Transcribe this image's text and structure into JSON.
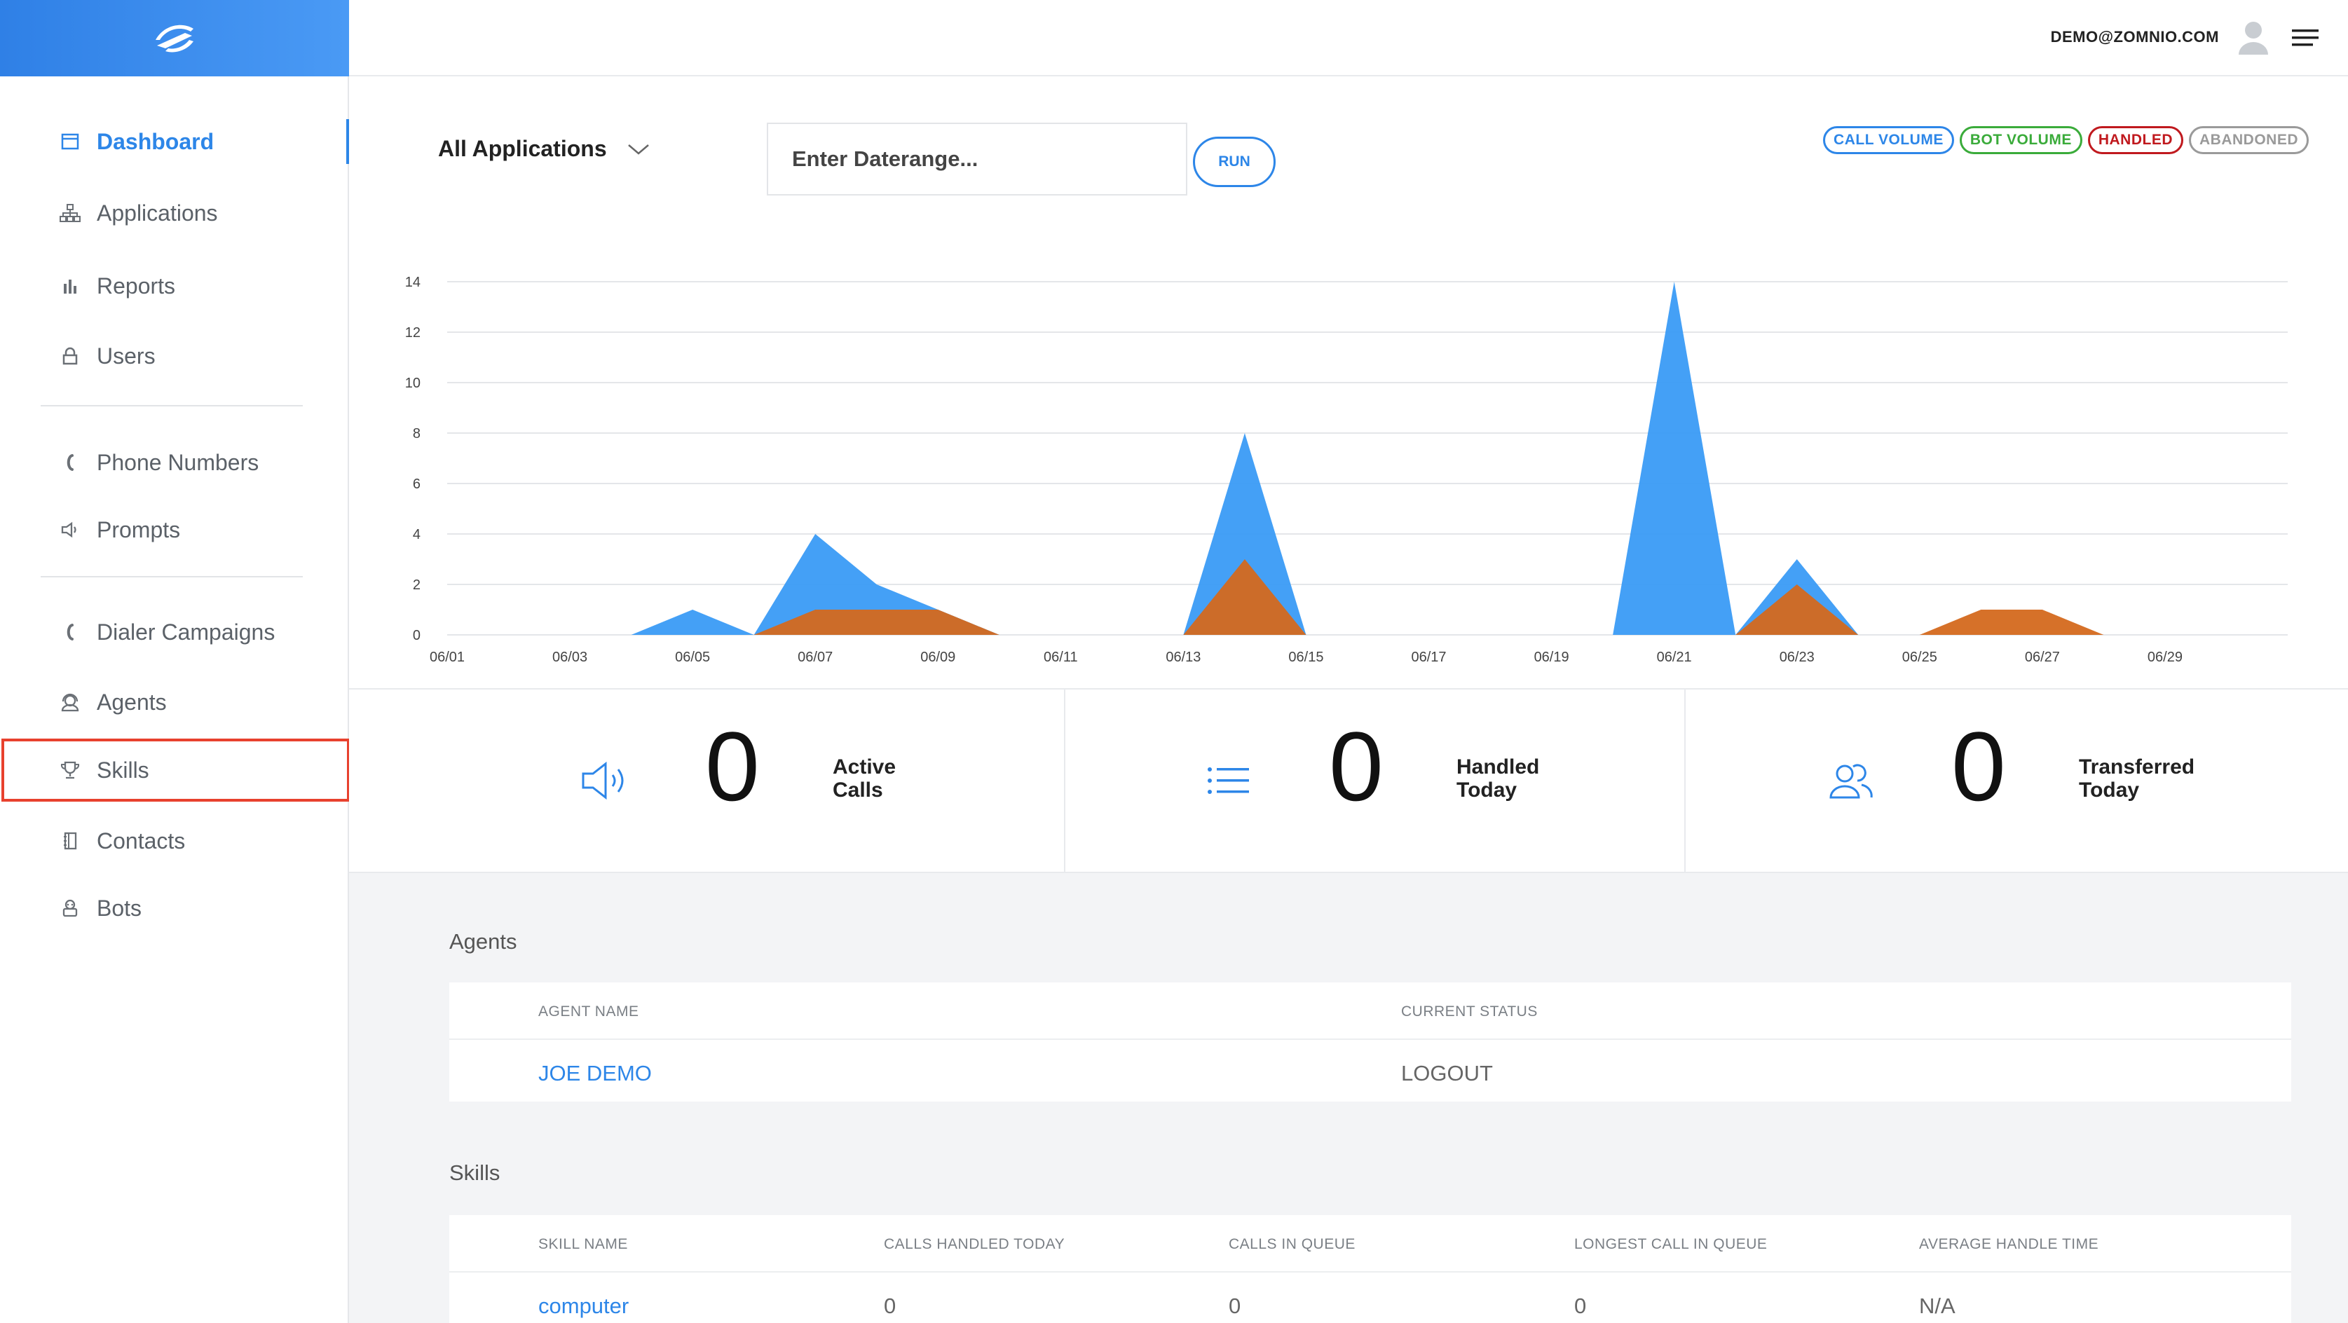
{
  "sidebar": {
    "items": [
      {
        "label": "Dashboard",
        "icon": "calendar-icon"
      },
      {
        "label": "Applications",
        "icon": "sitemap-icon"
      },
      {
        "label": "Reports",
        "icon": "bar-chart-icon"
      },
      {
        "label": "Users",
        "icon": "lock-icon"
      },
      {
        "label": "Phone Numbers",
        "icon": "phone-icon"
      },
      {
        "label": "Prompts",
        "icon": "speaker-icon"
      },
      {
        "label": "Dialer Campaigns",
        "icon": "phone-icon"
      },
      {
        "label": "Agents",
        "icon": "agent-icon"
      },
      {
        "label": "Skills",
        "icon": "trophy-icon"
      },
      {
        "label": "Contacts",
        "icon": "contacts-book-icon"
      },
      {
        "label": "Bots",
        "icon": "bot-icon"
      }
    ],
    "active": "Dashboard",
    "highlighted": "Skills"
  },
  "header": {
    "user_email": "DEMO@ZOMNIO.COM"
  },
  "filters": {
    "application_select": "All Applications",
    "daterange_placeholder": "Enter Daterange...",
    "run_label": "RUN"
  },
  "legend": [
    {
      "label": "CALL VOLUME",
      "color": "#2d86e8"
    },
    {
      "label": "BOT VOLUME",
      "color": "#3aab3a"
    },
    {
      "label": "HANDLED",
      "color": "#c0191e"
    },
    {
      "label": "ABANDONED",
      "color": "#9a9a9a"
    }
  ],
  "chart_data": {
    "type": "area",
    "x": [
      "06/01",
      "06/02",
      "06/03",
      "06/04",
      "06/05",
      "06/06",
      "06/07",
      "06/08",
      "06/09",
      "06/10",
      "06/11",
      "06/12",
      "06/13",
      "06/14",
      "06/15",
      "06/16",
      "06/17",
      "06/18",
      "06/19",
      "06/20",
      "06/21",
      "06/22",
      "06/23",
      "06/24",
      "06/25",
      "06/26",
      "06/27",
      "06/28",
      "06/29",
      "06/30",
      "07/01"
    ],
    "x_tick_labels": [
      "06/01",
      "06/03",
      "06/05",
      "06/07",
      "06/09",
      "06/11",
      "06/13",
      "06/15",
      "06/17",
      "06/19",
      "06/21",
      "06/23",
      "06/25",
      "06/27",
      "06/29"
    ],
    "y_ticks": [
      0,
      2,
      4,
      6,
      8,
      10,
      12,
      14
    ],
    "ylim": [
      0,
      14
    ],
    "grid": true,
    "series": [
      {
        "name": "CALL VOLUME",
        "color": "#3a9bf5",
        "values": [
          0,
          0,
          0,
          0,
          1,
          0,
          4,
          2,
          1,
          0,
          0,
          0,
          0,
          8,
          0,
          0,
          0,
          0,
          0,
          0,
          14,
          0,
          3,
          0,
          0,
          0,
          0,
          0,
          0,
          0,
          0
        ]
      },
      {
        "name": "HANDLED",
        "color": "#d4691e",
        "values": [
          0,
          0,
          0,
          0,
          0,
          0,
          1,
          1,
          1,
          0,
          0,
          0,
          0,
          3,
          0,
          0,
          0,
          0,
          0,
          0,
          0,
          0,
          2,
          0,
          0,
          1,
          1,
          0,
          0,
          0,
          0
        ]
      }
    ]
  },
  "stats": [
    {
      "value": "0",
      "label_line1": "Active",
      "label_line2": "Calls",
      "icon": "speaker-icon"
    },
    {
      "value": "0",
      "label_line1": "Handled",
      "label_line2": "Today",
      "icon": "list-icon"
    },
    {
      "value": "0",
      "label_line1": "Transferred",
      "label_line2": "Today",
      "icon": "users-icon"
    }
  ],
  "agents": {
    "title": "Agents",
    "columns": [
      "AGENT NAME",
      "CURRENT STATUS"
    ],
    "rows": [
      {
        "name": "JOE DEMO",
        "status": "LOGOUT"
      }
    ]
  },
  "skills": {
    "title": "Skills",
    "columns": [
      "SKILL NAME",
      "CALLS HANDLED TODAY",
      "CALLS IN QUEUE",
      "LONGEST CALL IN QUEUE",
      "AVERAGE HANDLE TIME"
    ],
    "rows": [
      {
        "name": "computer",
        "handled": "0",
        "queue": "0",
        "longest": "0",
        "aht": "N/A"
      }
    ]
  }
}
